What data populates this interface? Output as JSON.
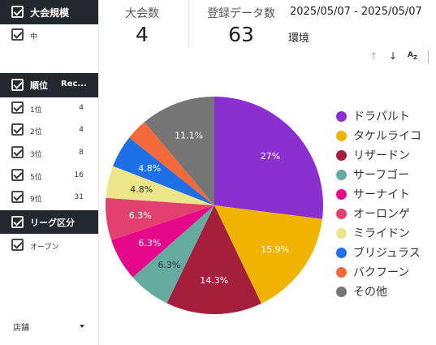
{
  "sidebar": {
    "tournament_size": {
      "title": "大会規模",
      "items": [
        {
          "label": "中"
        }
      ]
    },
    "ranking": {
      "title": "順位",
      "count_header": "Rec...",
      "items": [
        {
          "label": "1位",
          "count": "4"
        },
        {
          "label": "2位",
          "count": "4"
        },
        {
          "label": "3位",
          "count": "8"
        },
        {
          "label": "5位",
          "count": "16"
        },
        {
          "label": "9位",
          "count": "31"
        }
      ]
    },
    "league": {
      "title": "リーグ区分",
      "items": [
        {
          "label": "オープン"
        }
      ]
    },
    "store_filter": {
      "label": "店舗"
    }
  },
  "header": {
    "tournament_count": {
      "label": "大会数",
      "value": "4"
    },
    "record_count": {
      "label": "登録データ数",
      "value": "63"
    },
    "date_range": "2025/05/07 - 2025/05/07",
    "environment_label": "環境"
  },
  "icons": {
    "sort_up": "arrow-up-icon",
    "sort_down": "arrow-down-icon",
    "sort_az": "sort-az-icon",
    "dropdown": "caret-down-icon",
    "check": "checkbox-checked-icon"
  },
  "chart_data": {
    "type": "pie",
    "slices": [
      {
        "name": "ドラパルト",
        "value": 27,
        "label": "27%",
        "color": "#8a2fd0"
      },
      {
        "name": "タケルライコ",
        "value": 15.9,
        "label": "15.9%",
        "color": "#f0b400"
      },
      {
        "name": "リザードン",
        "value": 14.3,
        "label": "14.3%",
        "color": "#a51e3c"
      },
      {
        "name": "サーフゴー",
        "value": 6.3,
        "label": "6.3%",
        "color": "#66aba0"
      },
      {
        "name": "サーナイト",
        "value": 6.3,
        "label": "6.3%",
        "color": "#e6088a"
      },
      {
        "name": "オーロンゲ",
        "value": 6.3,
        "label": "6.3%",
        "color": "#e2416f"
      },
      {
        "name": "ミライドン",
        "value": 4.8,
        "label": "4.8%",
        "color": "#ede58a"
      },
      {
        "name": "ブリジュラス",
        "value": 4.8,
        "label": "4.8%",
        "color": "#1f6fe8"
      },
      {
        "name": "バクフーン",
        "value": 3.2,
        "label": "",
        "color": "#f4693a"
      },
      {
        "name": "その他",
        "value": 11.1,
        "label": "11.1%",
        "color": "#757575"
      }
    ],
    "legend_position": "right"
  }
}
